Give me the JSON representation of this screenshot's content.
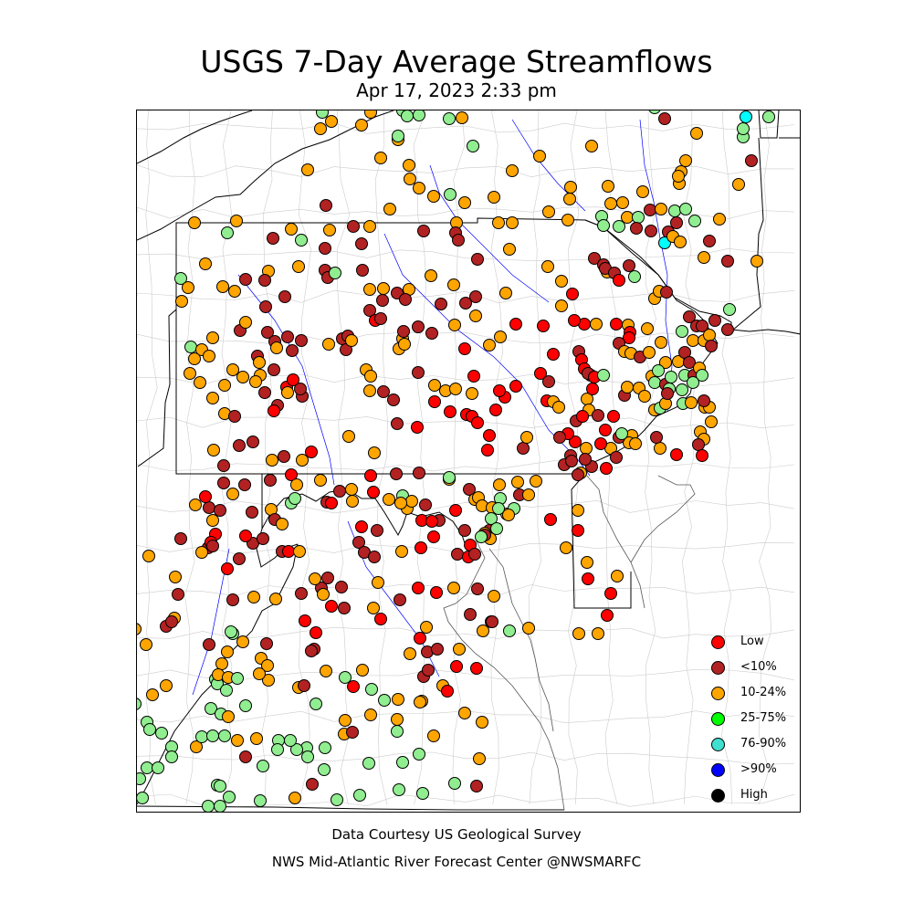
{
  "header": {
    "title": "USGS 7-Day Average Streamflows",
    "subtitle": "Apr 17, 2023 2:33 pm"
  },
  "footer": {
    "credit": "Data Courtesy US Geological Survey",
    "org": "NWS Mid-Atlantic River Forecast Center @NWSMARFC"
  },
  "legend": [
    {
      "label": "Low",
      "color": "#ff0000"
    },
    {
      "label": "<10%",
      "color": "#b22222"
    },
    {
      "label": "10-24%",
      "color": "#ffa500"
    },
    {
      "label": "25-75%",
      "color": "#00ff00"
    },
    {
      "label": "76-90%",
      "color": "#40e0d0"
    },
    {
      "label": ">90%",
      "color": "#0000ff"
    },
    {
      "label": "High",
      "color": "#000000"
    }
  ],
  "map_colors": {
    "low": "#ff0000",
    "lt10": "#b22222",
    "p10_24": "#ffa500",
    "p25_75": "#90ee90",
    "p76_90": "#00ffff",
    "state_line": "#000000",
    "county_line": "#cccccc",
    "river": "#0000ff"
  }
}
